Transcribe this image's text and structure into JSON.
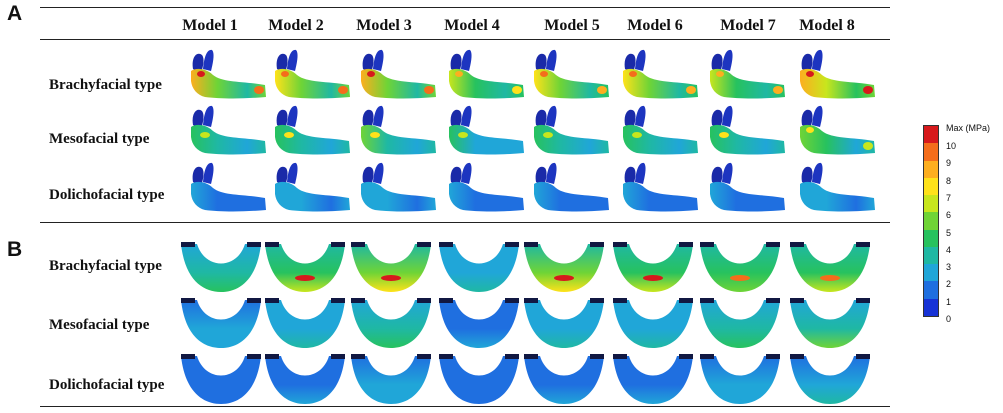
{
  "panels": [
    {
      "letter": "A",
      "columns": [
        "Model 1",
        "Model 2",
        "Model 3",
        "Model 4",
        "Model 5",
        "Model 6",
        "Model 7",
        "Model 8"
      ],
      "rows": [
        "Brachyfacial type",
        "Mesofacial type",
        "Dolichofacial type"
      ],
      "view": "lateral mandible",
      "stress_levels": [
        [
          0.95,
          0.9,
          0.95,
          0.75,
          0.85,
          0.85,
          0.8,
          1.0
        ],
        [
          0.5,
          0.55,
          0.6,
          0.45,
          0.5,
          0.5,
          0.55,
          0.65
        ],
        [
          0.2,
          0.3,
          0.3,
          0.2,
          0.25,
          0.25,
          0.25,
          0.3
        ]
      ]
    },
    {
      "letter": "B",
      "rows": [
        "Brachyfacial type",
        "Mesofacial type",
        "Dolichofacial type"
      ],
      "view": "occlusal arch",
      "stress_levels": [
        [
          0.45,
          0.7,
          0.75,
          0.35,
          0.75,
          0.7,
          0.6,
          0.65
        ],
        [
          0.25,
          0.35,
          0.45,
          0.2,
          0.35,
          0.35,
          0.45,
          0.5
        ],
        [
          0.15,
          0.2,
          0.25,
          0.15,
          0.2,
          0.2,
          0.25,
          0.3
        ]
      ]
    }
  ],
  "colorbar": {
    "title": "Max (MPa)",
    "ticks": [
      "10",
      "9",
      "8",
      "7",
      "6",
      "5",
      "4",
      "3",
      "2",
      "1",
      "0"
    ],
    "colors": [
      "#d7191c",
      "#f46d1b",
      "#fdae1f",
      "#ffe21a",
      "#c8e61d",
      "#6fd436",
      "#27c25e",
      "#1fb8a3",
      "#20a6d8",
      "#1f6fe0",
      "#1733d6"
    ]
  }
}
